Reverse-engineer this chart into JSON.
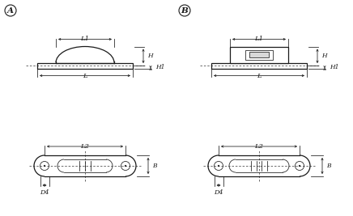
{
  "bg_color": "#ffffff",
  "line_color": "#1a1a1a",
  "label_A": "A",
  "label_B_circ": "B",
  "label_L1": "L1",
  "label_L": "L",
  "label_H": "H",
  "label_H1": "H1",
  "label_L2": "L2",
  "label_B_dim": "B",
  "label_D4": "D4",
  "figsize": [
    4.36,
    2.67
  ],
  "dpi": 100
}
